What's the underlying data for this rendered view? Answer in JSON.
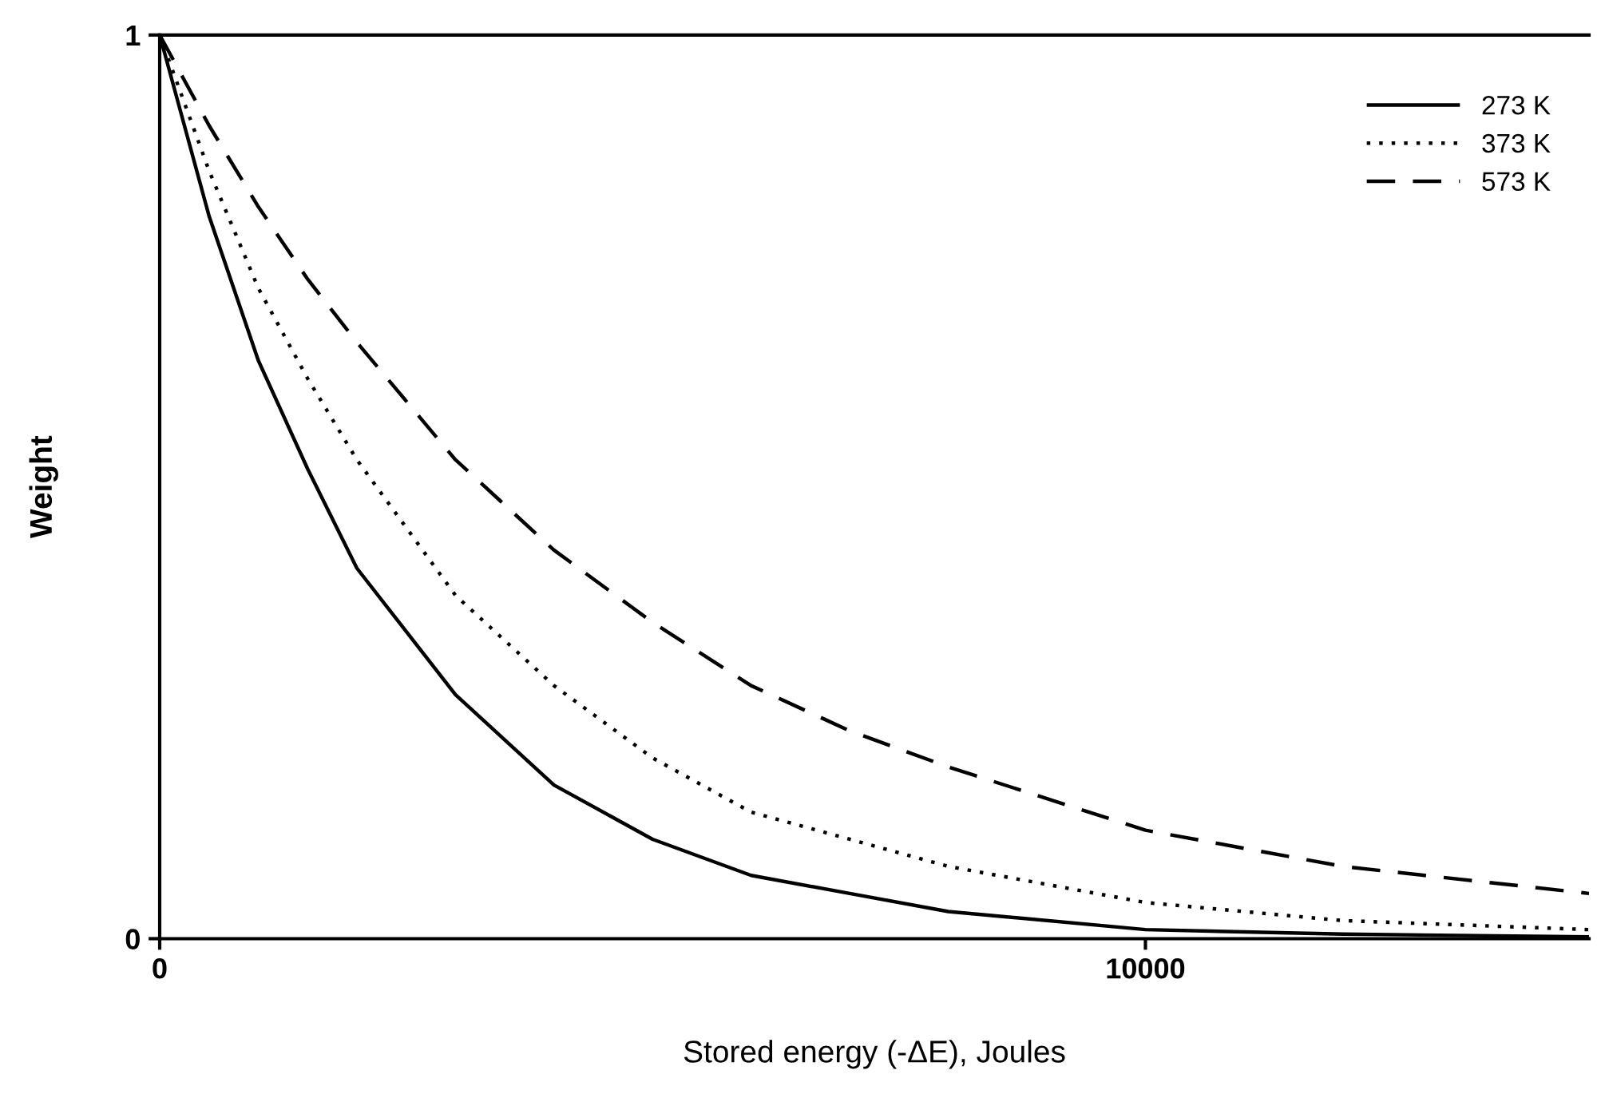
{
  "chart_data": {
    "type": "line",
    "xlabel": "Stored energy (-ΔE), Joules",
    "ylabel": "Weight",
    "x": [
      0,
      500,
      1000,
      1500,
      2000,
      3000,
      4000,
      5000,
      6000,
      7000,
      8000,
      10000,
      12000,
      14500
    ],
    "series": [
      {
        "name": "273 K",
        "color": "#000000",
        "line_style": "solid",
        "values": [
          1,
          0.8,
          0.64,
          0.52,
          0.41,
          0.27,
          0.17,
          0.11,
          0.07,
          0.05,
          0.03,
          0.01,
          0.005,
          0.002
        ]
      },
      {
        "name": "373 K",
        "color": "#000000",
        "line_style": "dotted",
        "values": [
          1,
          0.85,
          0.72,
          0.62,
          0.53,
          0.38,
          0.28,
          0.2,
          0.14,
          0.11,
          0.08,
          0.04,
          0.02,
          0.01
        ]
      },
      {
        "name": "573 K",
        "color": "#000000",
        "line_style": "dashed",
        "values": [
          1,
          0.9,
          0.81,
          0.73,
          0.66,
          0.53,
          0.43,
          0.35,
          0.28,
          0.23,
          0.19,
          0.12,
          0.08,
          0.05
        ]
      }
    ],
    "xlim": [
      0,
      14500
    ],
    "xticks": [
      0,
      10000
    ],
    "ylim": [
      0,
      1
    ],
    "yticks": [
      0,
      1
    ],
    "grid": false,
    "legend": "top right",
    "marker": "none"
  }
}
